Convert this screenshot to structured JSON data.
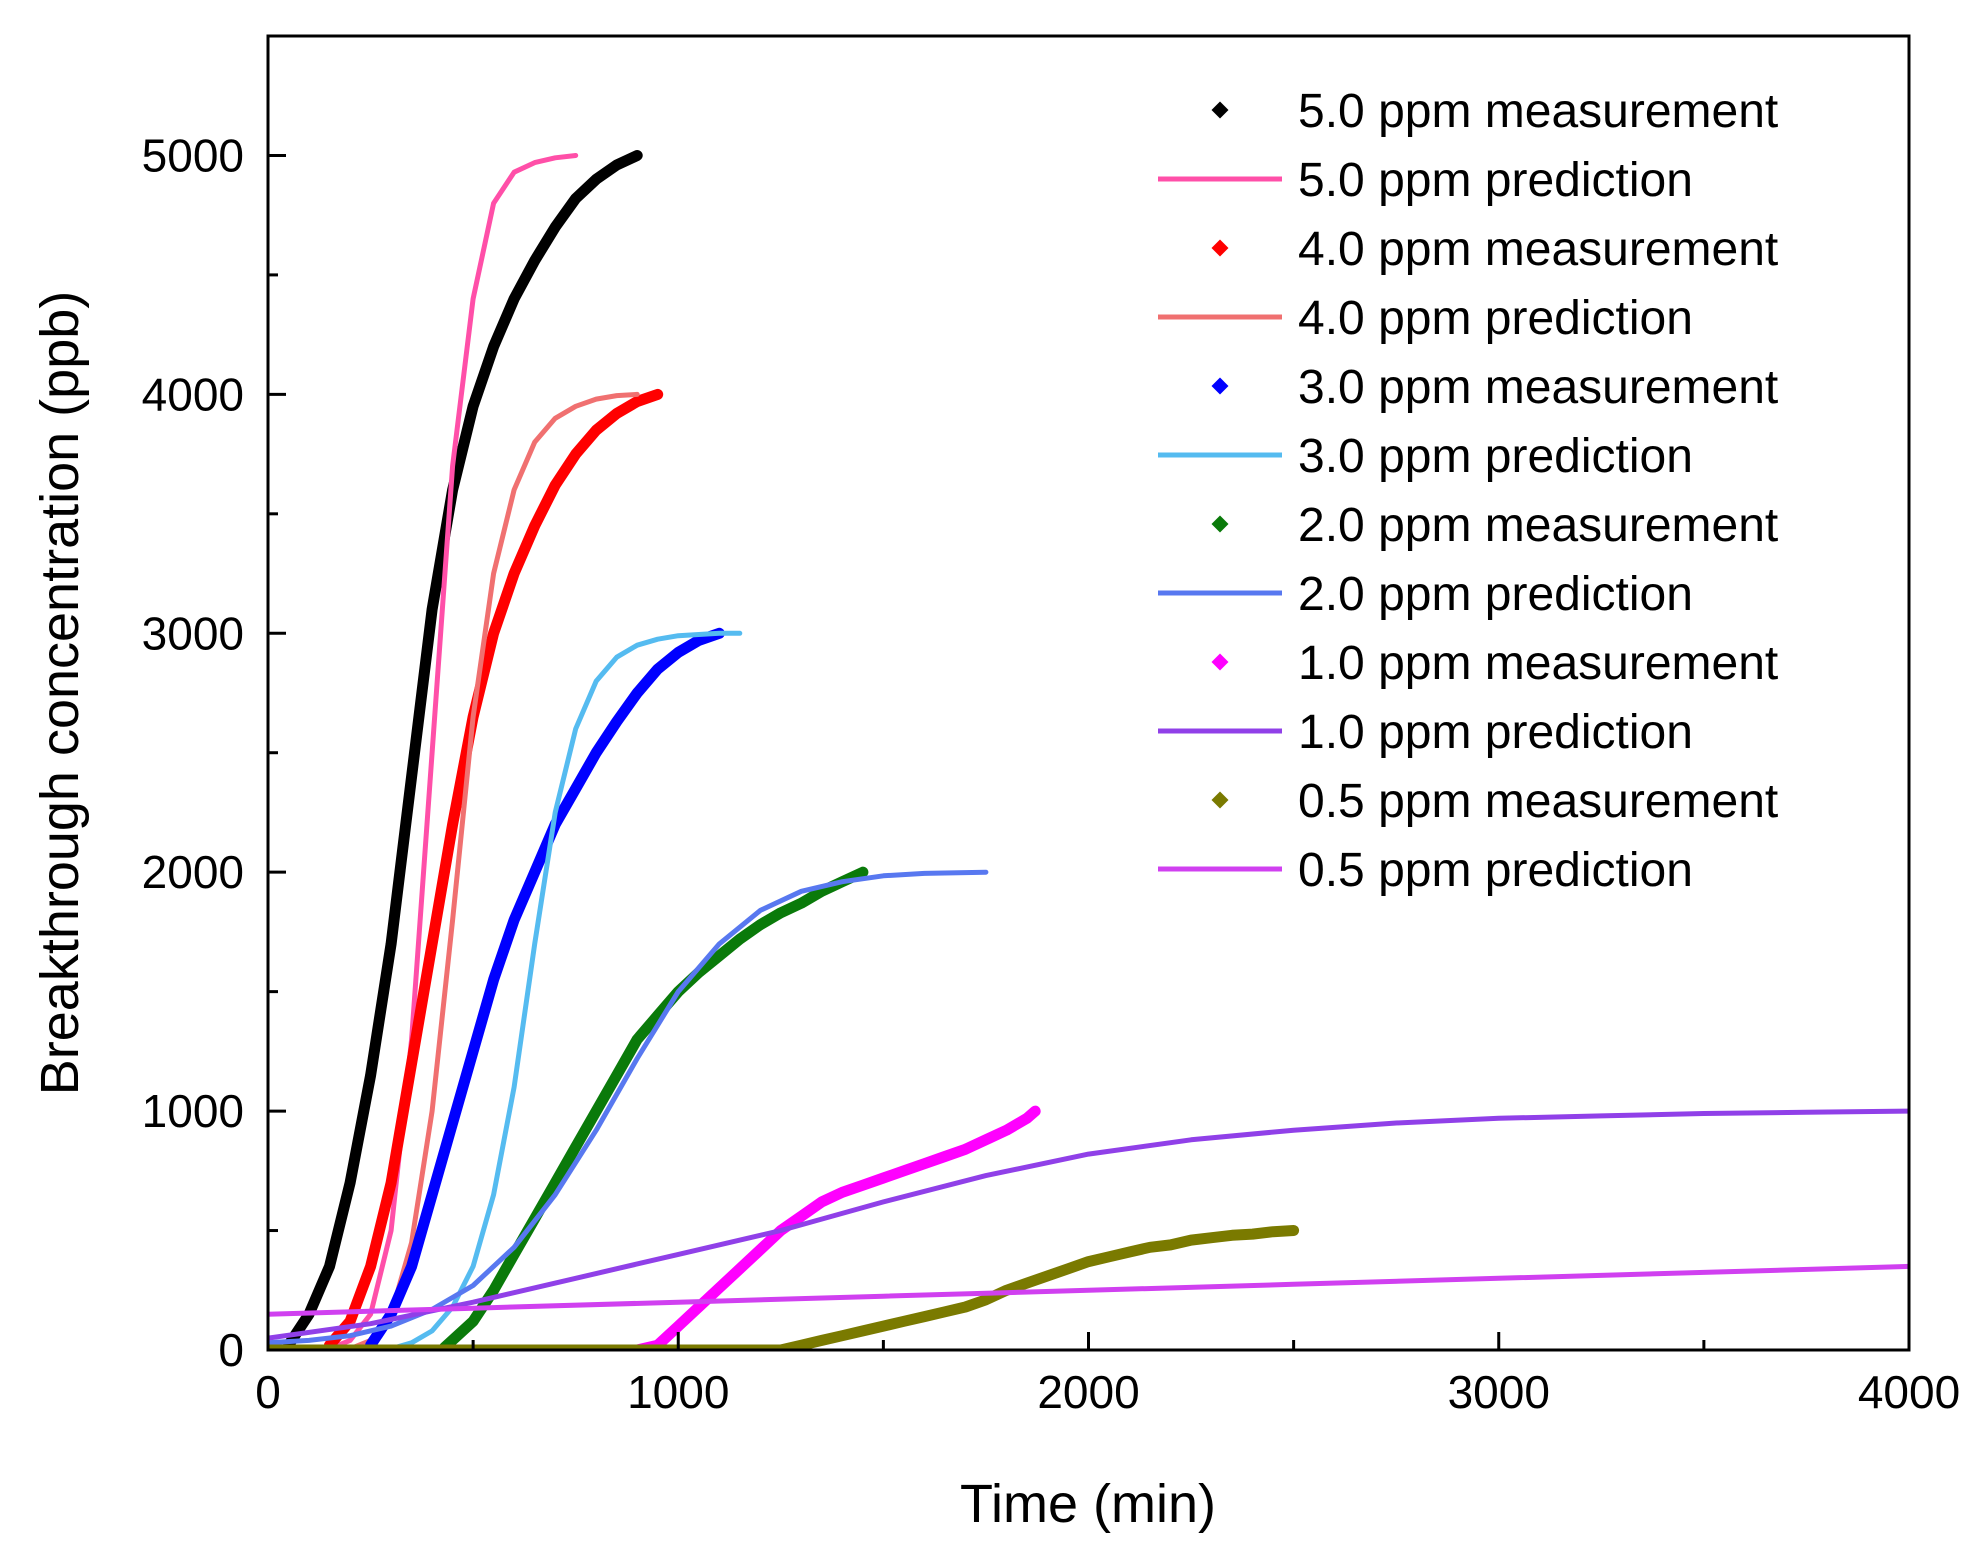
{
  "chart_data": {
    "type": "line",
    "title": "",
    "xlabel": "Time (min)",
    "ylabel": "Breakthrough concentration (ppb)",
    "xlim": [
      0,
      4000
    ],
    "ylim": [
      0,
      5500
    ],
    "xticks": [
      0,
      1000,
      2000,
      3000,
      4000
    ],
    "yticks": [
      0,
      1000,
      2000,
      3000,
      4000,
      5000
    ],
    "grid": false,
    "legend_position": "top-right",
    "series": [
      {
        "name": "5.0 ppm measurement",
        "kind": "measurement",
        "color": "#000000",
        "x": [
          50,
          100,
          150,
          200,
          250,
          300,
          350,
          400,
          450,
          500,
          550,
          600,
          650,
          700,
          750,
          800,
          850,
          900
        ],
        "y": [
          20,
          150,
          350,
          700,
          1150,
          1700,
          2400,
          3100,
          3600,
          3950,
          4200,
          4400,
          4560,
          4700,
          4820,
          4900,
          4960,
          5000
        ]
      },
      {
        "name": "5.0 ppm prediction",
        "kind": "prediction",
        "color": "#ff4fa8",
        "x": [
          150,
          200,
          250,
          300,
          350,
          400,
          450,
          500,
          550,
          600,
          650,
          700,
          750
        ],
        "y": [
          5,
          40,
          150,
          500,
          1300,
          2500,
          3700,
          4400,
          4800,
          4930,
          4970,
          4990,
          5000
        ]
      },
      {
        "name": "4.0 ppm measurement",
        "kind": "measurement",
        "color": "#ff0000",
        "x": [
          150,
          200,
          250,
          300,
          350,
          400,
          450,
          500,
          550,
          600,
          650,
          700,
          750,
          800,
          850,
          900,
          950
        ],
        "y": [
          20,
          120,
          350,
          700,
          1200,
          1700,
          2200,
          2650,
          3000,
          3250,
          3450,
          3620,
          3750,
          3850,
          3920,
          3970,
          4000
        ]
      },
      {
        "name": "4.0 ppm prediction",
        "kind": "prediction",
        "color": "#f07070",
        "x": [
          200,
          250,
          300,
          350,
          400,
          450,
          500,
          550,
          600,
          650,
          700,
          750,
          800,
          850,
          900
        ],
        "y": [
          5,
          40,
          150,
          450,
          1000,
          1800,
          2650,
          3250,
          3600,
          3800,
          3900,
          3950,
          3980,
          3995,
          4000
        ]
      },
      {
        "name": "3.0 ppm measurement",
        "kind": "measurement",
        "color": "#0000ff",
        "x": [
          250,
          300,
          350,
          400,
          450,
          500,
          550,
          600,
          650,
          700,
          750,
          800,
          850,
          900,
          950,
          1000,
          1050,
          1100
        ],
        "y": [
          20,
          150,
          350,
          650,
          950,
          1250,
          1550,
          1800,
          2000,
          2200,
          2350,
          2500,
          2630,
          2750,
          2850,
          2920,
          2970,
          3000
        ]
      },
      {
        "name": "3.0 ppm prediction",
        "kind": "prediction",
        "color": "#55bbf0",
        "x": [
          300,
          350,
          400,
          450,
          500,
          550,
          600,
          650,
          700,
          750,
          800,
          850,
          900,
          950,
          1000,
          1050,
          1100,
          1150
        ],
        "y": [
          5,
          30,
          80,
          180,
          350,
          650,
          1100,
          1700,
          2250,
          2600,
          2800,
          2900,
          2950,
          2975,
          2990,
          2995,
          3000,
          3000
        ]
      },
      {
        "name": "2.0 ppm measurement",
        "kind": "measurement",
        "color": "#0a7a0a",
        "x": [
          430,
          500,
          550,
          600,
          650,
          700,
          750,
          800,
          850,
          900,
          950,
          1000,
          1050,
          1100,
          1150,
          1200,
          1250,
          1300,
          1350,
          1400,
          1450
        ],
        "y": [
          10,
          120,
          250,
          400,
          550,
          700,
          850,
          1000,
          1150,
          1300,
          1400,
          1500,
          1580,
          1650,
          1720,
          1780,
          1830,
          1870,
          1920,
          1960,
          2000
        ]
      },
      {
        "name": "2.0 ppm prediction",
        "kind": "prediction",
        "color": "#5878f0",
        "x": [
          0,
          100,
          200,
          300,
          400,
          500,
          600,
          700,
          800,
          900,
          1000,
          1100,
          1200,
          1300,
          1400,
          1500,
          1600,
          1750
        ],
        "y": [
          30,
          40,
          60,
          100,
          170,
          270,
          430,
          650,
          920,
          1220,
          1500,
          1700,
          1840,
          1920,
          1960,
          1985,
          1995,
          2000
        ]
      },
      {
        "name": "1.0 ppm measurement",
        "kind": "measurement",
        "color": "#ff00ff",
        "x": [
          900,
          950,
          1000,
          1050,
          1100,
          1150,
          1200,
          1250,
          1300,
          1350,
          1400,
          1450,
          1500,
          1550,
          1600,
          1650,
          1700,
          1750,
          1800,
          1850,
          1870
        ],
        "y": [
          0,
          20,
          100,
          180,
          260,
          340,
          420,
          500,
          560,
          620,
          660,
          690,
          720,
          750,
          780,
          810,
          840,
          880,
          920,
          970,
          1000
        ]
      },
      {
        "name": "1.0 ppm prediction",
        "kind": "prediction",
        "color": "#9040e8",
        "x": [
          0,
          250,
          500,
          750,
          1000,
          1250,
          1500,
          1750,
          2000,
          2250,
          2500,
          2750,
          3000,
          3250,
          3500,
          3750,
          4000
        ],
        "y": [
          50,
          110,
          200,
          300,
          400,
          500,
          620,
          730,
          820,
          880,
          920,
          950,
          970,
          980,
          990,
          995,
          1000
        ]
      },
      {
        "name": "0.5 ppm measurement",
        "kind": "measurement",
        "color": "#7a7a00",
        "x": [
          0,
          1250,
          1300,
          1350,
          1400,
          1450,
          1500,
          1550,
          1600,
          1650,
          1700,
          1750,
          1800,
          1850,
          1900,
          1950,
          2000,
          2050,
          2100,
          2150,
          2200,
          2250,
          2300,
          2350,
          2400,
          2450,
          2500
        ],
        "y": [
          0,
          0,
          20,
          40,
          60,
          80,
          100,
          120,
          140,
          160,
          180,
          210,
          250,
          280,
          310,
          340,
          370,
          390,
          410,
          430,
          440,
          460,
          470,
          480,
          485,
          495,
          500
        ]
      },
      {
        "name": "0.5 ppm prediction",
        "kind": "prediction",
        "color": "#d040f0",
        "x": [
          0,
          500,
          1000,
          1500,
          2000,
          2500,
          3000,
          3500,
          4000
        ],
        "y": [
          150,
          175,
          200,
          225,
          250,
          275,
          300,
          325,
          350
        ]
      }
    ]
  }
}
